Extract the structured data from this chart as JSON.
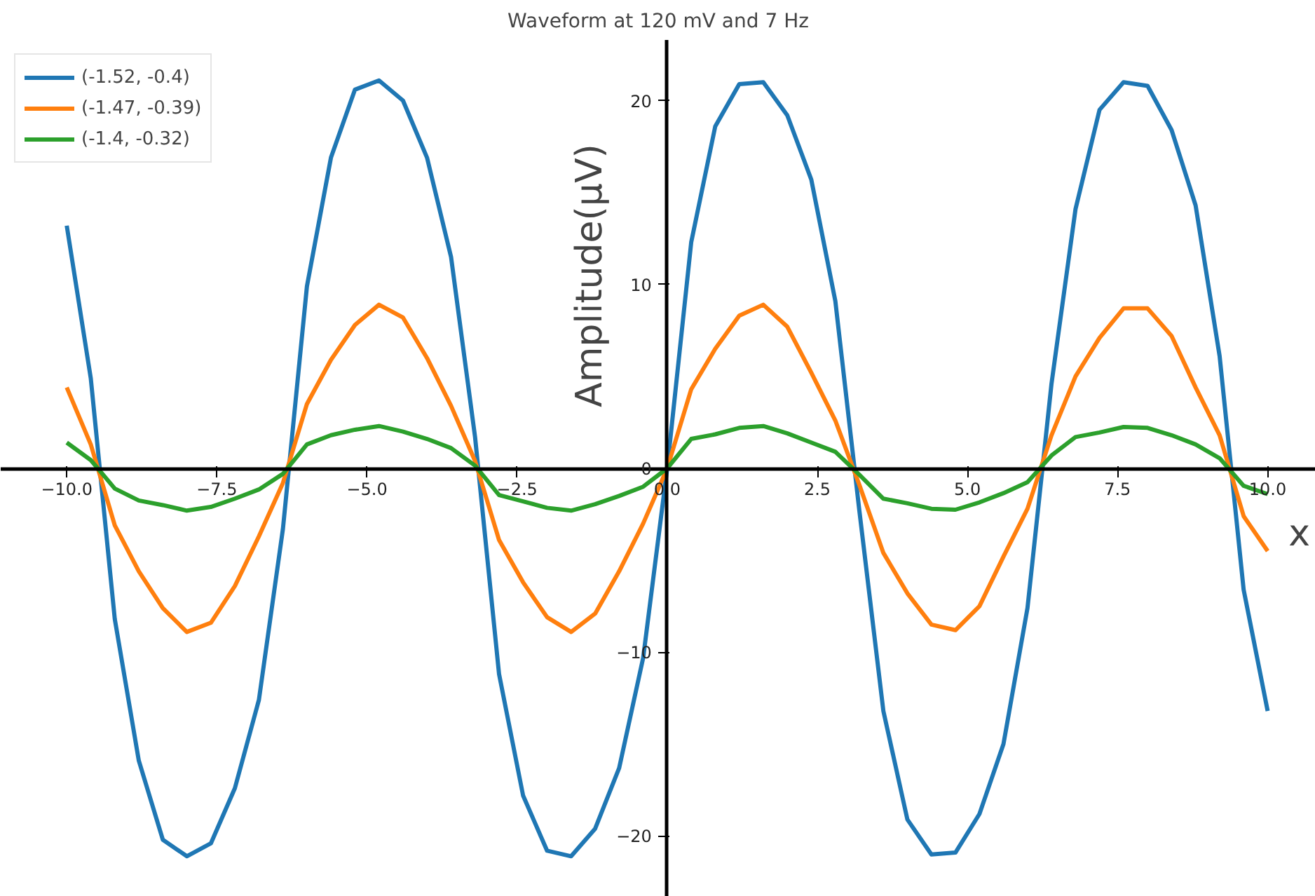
{
  "chart_data": {
    "type": "line",
    "title": "Waveform at 120 mV and 7 Hz",
    "xlabel": "x",
    "ylabel": "Amplitude(μV)",
    "x": [
      -10.0,
      -9.6,
      -9.2,
      -8.8,
      -8.4,
      -8.0,
      -7.6,
      -7.2,
      -6.8,
      -6.4,
      -6.0,
      -5.6,
      -5.2,
      -4.8,
      -4.4,
      -4.0,
      -3.6,
      -3.2,
      -2.8,
      -2.4,
      -2.0,
      -1.6,
      -1.2,
      -0.8,
      -0.4,
      0.0,
      0.4,
      0.8,
      1.2,
      1.6,
      2.0,
      2.4,
      2.8,
      3.2,
      3.6,
      4.0,
      4.4,
      4.8,
      5.2,
      5.6,
      6.0,
      6.4,
      6.8,
      7.2,
      7.6,
      8.0,
      8.4,
      8.8,
      9.2,
      9.6,
      10.0
    ],
    "series": [
      {
        "name": "(-1.52, -0.4)",
        "color": "#1f77b4",
        "values": [
          13.2,
          4.9,
          -8.2,
          -15.9,
          -20.2,
          -21.1,
          -20.4,
          -17.4,
          -12.6,
          -3.3,
          9.9,
          16.9,
          20.6,
          21.1,
          20.0,
          16.9,
          11.5,
          1.7,
          -11.2,
          -17.8,
          -20.8,
          -21.1,
          -19.6,
          -16.3,
          -10.3,
          0,
          12.3,
          18.6,
          20.9,
          21.0,
          19.2,
          15.7,
          9.1,
          -2.3,
          -13.2,
          -19.1,
          -21.0,
          -20.9,
          -18.8,
          -15.0,
          -7.6,
          4.6,
          14.1,
          19.5,
          21.0,
          20.8,
          18.4,
          14.3,
          6.1,
          -6.6,
          -13.2
        ]
      },
      {
        "name": "(-1.47, -0.39)",
        "color": "#ff7f0e",
        "values": [
          4.4,
          1.3,
          -3.1,
          -5.6,
          -7.6,
          -8.9,
          -8.4,
          -6.4,
          -3.7,
          -0.8,
          3.5,
          5.9,
          7.8,
          8.9,
          8.2,
          6.0,
          3.4,
          0.4,
          -3.9,
          -6.2,
          -8.1,
          -8.9,
          -7.9,
          -5.6,
          -3.0,
          0,
          4.3,
          6.5,
          8.3,
          8.9,
          7.7,
          5.2,
          2.6,
          -0.9,
          -4.6,
          -6.8,
          -8.5,
          -8.8,
          -7.5,
          -4.8,
          -2.2,
          1.8,
          5.0,
          7.1,
          8.7,
          8.7,
          7.2,
          4.4,
          1.8,
          -2.6,
          -4.5
        ]
      },
      {
        "name": "(-1.4, -0.32)",
        "color": "#2ca02c",
        "values": [
          1.4,
          0.45,
          -1.1,
          -1.75,
          -2.0,
          -2.3,
          -2.1,
          -1.65,
          -1.15,
          -0.3,
          1.3,
          1.8,
          2.1,
          2.3,
          2.0,
          1.6,
          1.1,
          0.15,
          -1.45,
          -1.8,
          -2.15,
          -2.3,
          -1.95,
          -1.5,
          -1.0,
          0,
          1.6,
          1.85,
          2.2,
          2.3,
          1.9,
          1.4,
          0.9,
          -0.35,
          -1.65,
          -1.9,
          -2.2,
          -2.25,
          -1.85,
          -1.35,
          -0.75,
          0.7,
          1.7,
          1.95,
          2.25,
          2.2,
          1.8,
          1.3,
          0.55,
          -0.95,
          -1.4
        ]
      }
    ],
    "xlim": [
      -11.1,
      10.8
    ],
    "ylim": [
      -23.3,
      23.3
    ],
    "xticks": [
      {
        "value": -10,
        "label": "−10.0"
      },
      {
        "value": -7.5,
        "label": "−7.5"
      },
      {
        "value": -5,
        "label": "−5.0"
      },
      {
        "value": -2.5,
        "label": "−2.5"
      },
      {
        "value": 0,
        "label": "0.0"
      },
      {
        "value": 2.5,
        "label": "2.5"
      },
      {
        "value": 5,
        "label": "5.0"
      },
      {
        "value": 7.5,
        "label": "7.5"
      },
      {
        "value": 10,
        "label": "10.0"
      }
    ],
    "yticks": [
      {
        "value": -20,
        "label": "−20"
      },
      {
        "value": -10,
        "label": "−10"
      },
      0,
      10,
      20
    ],
    "grid": false,
    "legend": "top left",
    "line_style": "solid",
    "marker": "none"
  }
}
